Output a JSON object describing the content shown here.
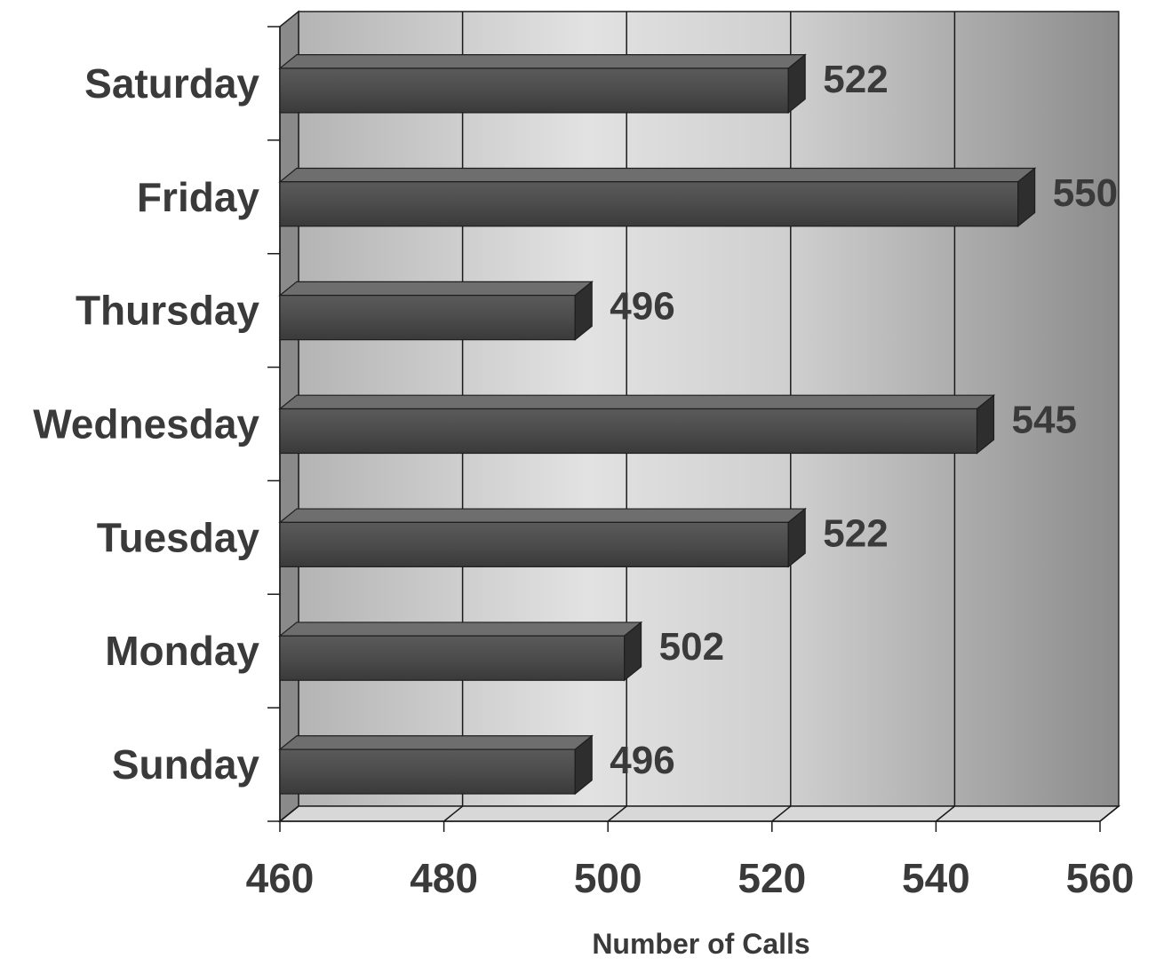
{
  "chart_data": {
    "type": "bar",
    "orientation": "horizontal",
    "style": "3d",
    "categories": [
      "Sunday",
      "Monday",
      "Tuesday",
      "Wednesday",
      "Thursday",
      "Friday",
      "Saturday"
    ],
    "values": [
      496,
      502,
      522,
      545,
      496,
      550,
      522
    ],
    "value_labels": [
      "496",
      "502",
      "522",
      "545",
      "496",
      "550",
      "522"
    ],
    "title": "",
    "xlabel": "Number of Calls",
    "ylabel": "",
    "xlim": [
      460,
      560
    ],
    "xticks": [
      460,
      480,
      500,
      520,
      540,
      560
    ],
    "xtick_labels": [
      "460",
      "480",
      "500",
      "520",
      "540",
      "560"
    ],
    "grid": true,
    "legend": "none"
  },
  "colors": {
    "bar_front": "#4a4a4a",
    "bar_top": "#6e6e6e",
    "bar_end": "#2e2e2e",
    "text": "#3a3a3a",
    "grid": "#1a1a1a",
    "wall_light": "#e6e6e6",
    "wall_dark": "#9a9a9a"
  }
}
